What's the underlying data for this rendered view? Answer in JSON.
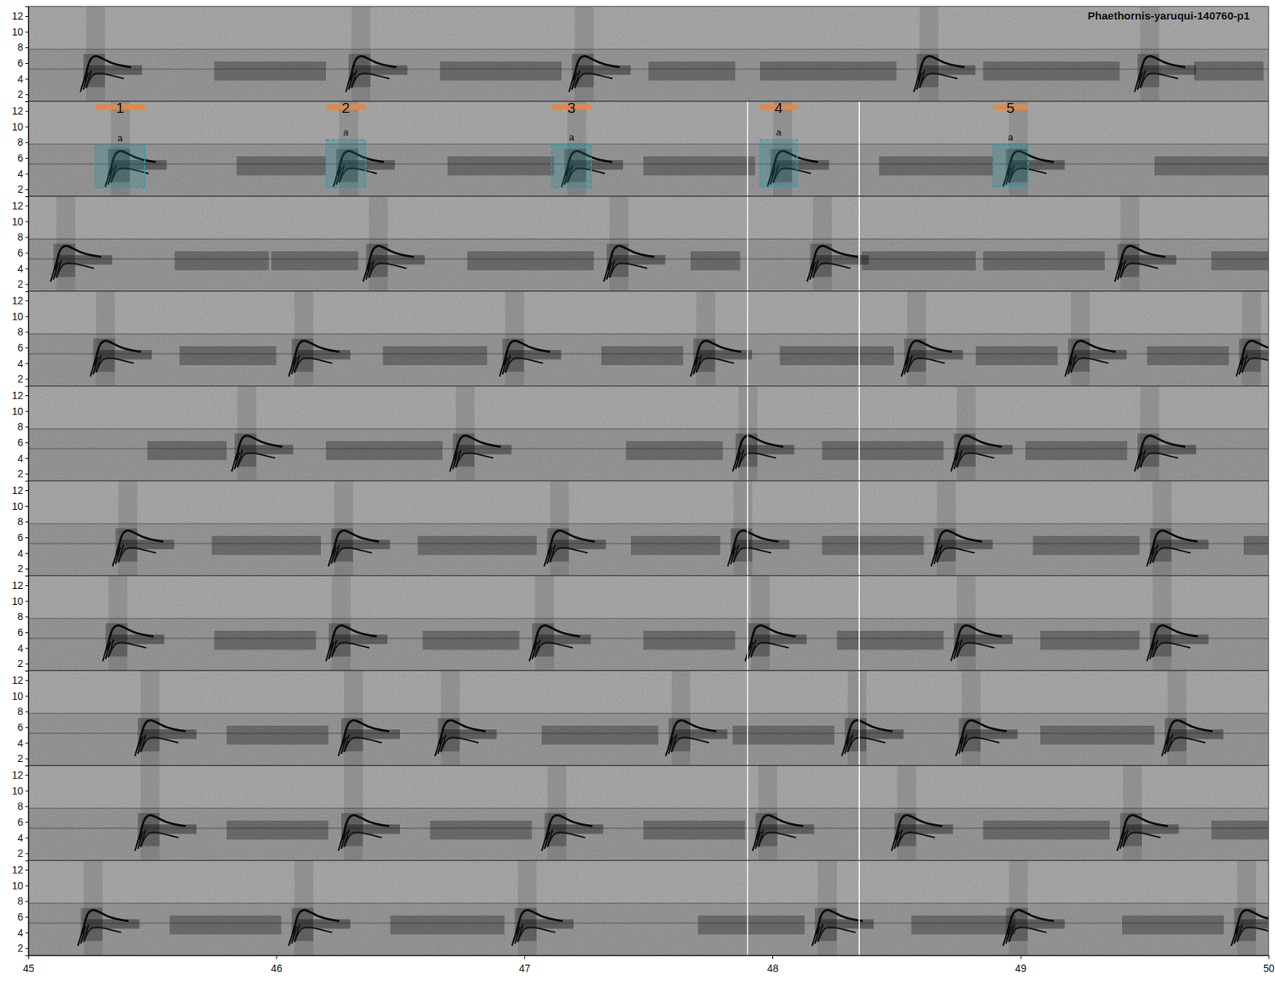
{
  "chart_data": {
    "type": "spectrogram",
    "title": "Phaethornis-yaruqui-140760-p1",
    "xlim": [
      45,
      50
    ],
    "xticks": [
      45,
      46,
      47,
      48,
      49,
      50
    ],
    "ylim": [
      1.1,
      13.2
    ],
    "yticks": [
      2,
      4,
      6,
      8,
      10,
      12
    ],
    "panels": [
      {
        "calls": [
          45.21,
          46.28,
          47.18,
          48.57,
          49.46
        ],
        "bands": [
          [
            45.75,
            46.2
          ],
          [
            46.66,
            47.15
          ],
          [
            47.5,
            47.85
          ],
          [
            47.95,
            48.5
          ],
          [
            48.85,
            49.4
          ],
          [
            49.7,
            49.98
          ]
        ],
        "dividers": []
      },
      {
        "calls": [
          45.31,
          46.23,
          47.15,
          47.98,
          48.93
        ],
        "bands": [
          [
            45.84,
            46.2
          ],
          [
            46.69,
            47.12
          ],
          [
            47.48,
            47.93
          ],
          [
            48.43,
            48.89
          ],
          [
            49.54,
            50.0
          ]
        ],
        "dividers": [
          47.9,
          48.35
        ],
        "selections": [
          {
            "label": "1",
            "tag": "a",
            "x0": 45.27,
            "x1": 45.47,
            "y0": 2.2,
            "y1": 7.6
          },
          {
            "label": "2",
            "tag": "a",
            "x0": 46.2,
            "x1": 46.36,
            "y0": 2.2,
            "y1": 8.3
          },
          {
            "label": "3",
            "tag": "a",
            "x0": 47.11,
            "x1": 47.27,
            "y0": 2.2,
            "y1": 7.7
          },
          {
            "label": "4",
            "tag": "a",
            "x0": 47.95,
            "x1": 48.1,
            "y0": 2.3,
            "y1": 8.3
          },
          {
            "label": "5",
            "tag": "a",
            "x0": 48.89,
            "x1": 49.03,
            "y0": 2.3,
            "y1": 7.7
          }
        ]
      },
      {
        "calls": [
          45.09,
          46.35,
          47.32,
          48.14,
          49.38
        ],
        "bands": [
          [
            45.59,
            45.97
          ],
          [
            45.98,
            46.33
          ],
          [
            46.77,
            47.28
          ],
          [
            47.67,
            47.87
          ],
          [
            48.36,
            48.82
          ],
          [
            48.85,
            49.34
          ],
          [
            49.77,
            50.0
          ]
        ],
        "dividers": [
          47.9,
          48.35
        ]
      },
      {
        "calls": [
          45.25,
          46.05,
          46.9,
          47.67,
          48.52,
          49.18,
          49.87
        ],
        "bands": [
          [
            45.61,
            46.0
          ],
          [
            46.43,
            46.85
          ],
          [
            47.31,
            47.64
          ],
          [
            48.03,
            48.49
          ],
          [
            48.82,
            49.15
          ],
          [
            49.51,
            49.84
          ]
        ],
        "dividers": [
          47.9,
          48.35
        ]
      },
      {
        "calls": [
          45.82,
          46.7,
          47.84,
          48.72,
          49.46
        ],
        "bands": [
          [
            45.48,
            45.8
          ],
          [
            46.2,
            46.67
          ],
          [
            47.41,
            47.8
          ],
          [
            48.2,
            48.69
          ],
          [
            49.02,
            49.43
          ]
        ],
        "dividers": [
          47.9,
          48.35
        ]
      },
      {
        "calls": [
          45.34,
          46.21,
          47.08,
          47.82,
          48.64,
          49.51
        ],
        "bands": [
          [
            45.74,
            46.18
          ],
          [
            46.57,
            47.05
          ],
          [
            47.43,
            47.79
          ],
          [
            48.2,
            48.61
          ],
          [
            49.05,
            49.48
          ],
          [
            49.9,
            50.0
          ]
        ],
        "dividers": [
          47.9,
          48.35
        ]
      },
      {
        "calls": [
          45.3,
          46.2,
          47.02,
          47.89,
          48.72,
          49.51
        ],
        "bands": [
          [
            45.75,
            46.16
          ],
          [
            46.59,
            46.98
          ],
          [
            47.48,
            47.85
          ],
          [
            48.26,
            48.69
          ],
          [
            49.08,
            49.48
          ]
        ],
        "dividers": [
          47.9,
          48.35
        ]
      },
      {
        "calls": [
          45.43,
          46.25,
          46.64,
          47.57,
          48.28,
          48.74,
          49.57
        ],
        "bands": [
          [
            45.8,
            46.21
          ],
          [
            47.07,
            47.54
          ],
          [
            47.84,
            48.25
          ],
          [
            49.08,
            49.54
          ]
        ],
        "dividers": [
          47.9,
          48.35
        ]
      },
      {
        "calls": [
          45.43,
          46.25,
          47.07,
          47.92,
          48.48,
          49.39
        ],
        "bands": [
          [
            45.8,
            46.21
          ],
          [
            46.62,
            47.03
          ],
          [
            47.48,
            47.89
          ],
          [
            48.85,
            49.36
          ],
          [
            49.77,
            50.0
          ]
        ],
        "dividers": [
          47.9,
          48.35
        ]
      },
      {
        "calls": [
          45.2,
          46.05,
          46.95,
          48.16,
          48.93,
          49.85
        ],
        "bands": [
          [
            45.57,
            46.02
          ],
          [
            46.46,
            46.92
          ],
          [
            47.7,
            48.13
          ],
          [
            48.56,
            48.98
          ],
          [
            49.41,
            49.82
          ]
        ],
        "dividers": [
          47.9,
          48.35
        ]
      }
    ]
  }
}
